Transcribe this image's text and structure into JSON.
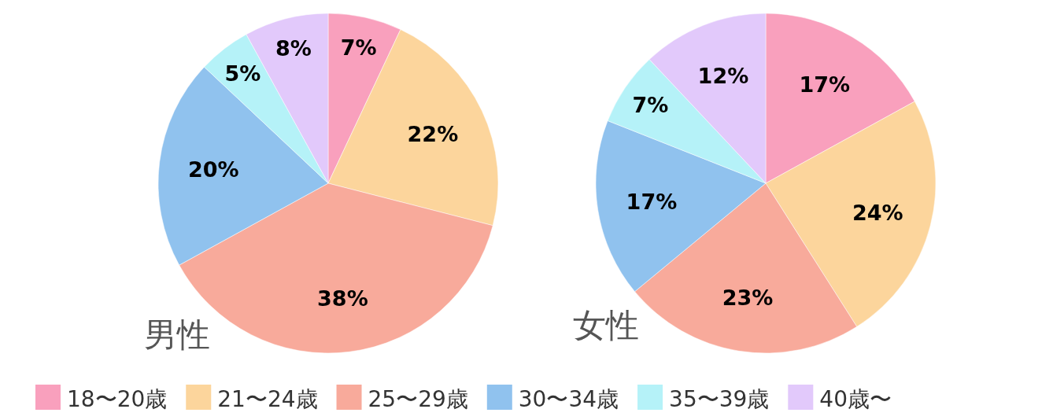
{
  "chart_data": [
    {
      "type": "pie",
      "title": "男性",
      "categories": [
        "18〜20歳",
        "21〜24歳",
        "25〜29歳",
        "30〜34歳",
        "35〜39歳",
        "40歳〜"
      ],
      "values": [
        7,
        22,
        38,
        20,
        5,
        8
      ],
      "value_labels": [
        "7%",
        "22%",
        "38%",
        "20%",
        "5%",
        "8%"
      ],
      "colors": [
        "#f9a0bd",
        "#fcd59c",
        "#f8aa9b",
        "#90c2ee",
        "#b5f2f8",
        "#e2c9fb"
      ],
      "legend": "bottom"
    },
    {
      "type": "pie",
      "title": "女性",
      "categories": [
        null,
        null,
        null,
        null,
        null,
        null
      ],
      "values": [
        17,
        24,
        23,
        17,
        7,
        12
      ],
      "value_labels": [
        "17%",
        "24%",
        "23%",
        "17%",
        "7%",
        "12%"
      ],
      "colors": [
        "#f9a0bd",
        "#fcd59c",
        "#f8aa9b",
        "#90c2ee",
        "#b5f2f8",
        "#e2c9fb"
      ]
    }
  ]
}
